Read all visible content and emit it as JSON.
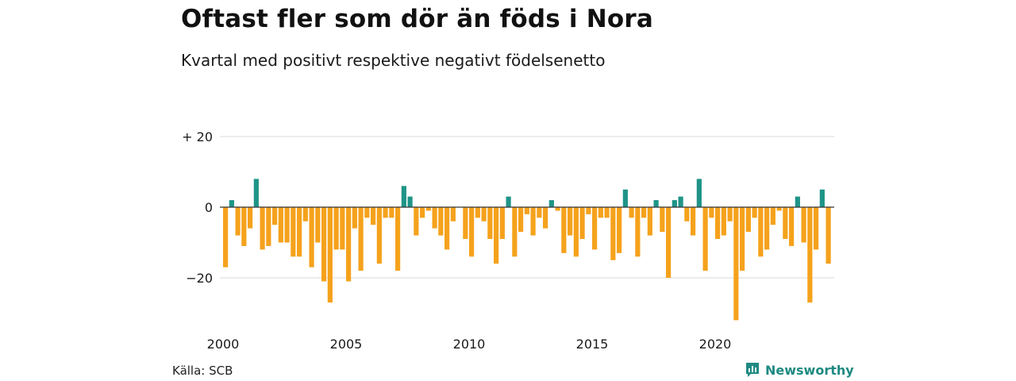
{
  "title": "Oftast fler som dör än föds i Nora",
  "subtitle": "Kvartal med positivt respektive negativt födelsenetto",
  "source": "Källa: SCB",
  "brand": "Newsworthy",
  "colors": {
    "positive": "#1f9488",
    "negative": "#f5a21c",
    "grid": "#d9d9d9",
    "zero": "#333333",
    "brand": "#1f8a82"
  },
  "chart_data": {
    "type": "bar",
    "title": "Oftast fler som dör än föds i Nora",
    "subtitle": "Kvartal med positivt respektive negativt födelsenetto",
    "xlabel": "",
    "ylabel": "",
    "ylim": [
      -35,
      25
    ],
    "grid": true,
    "y_ticks": [
      {
        "value": 20,
        "label": "+ 20"
      },
      {
        "value": 0,
        "label": "0"
      },
      {
        "value": -20,
        "label": "−20"
      }
    ],
    "x_ticks": [
      {
        "value": 2000,
        "label": "2000"
      },
      {
        "value": 2005,
        "label": "2005"
      },
      {
        "value": 2010,
        "label": "2010"
      },
      {
        "value": 2015,
        "label": "2015"
      },
      {
        "value": 2020,
        "label": "2020"
      }
    ],
    "x_start_year": 2000,
    "values": [
      -17,
      2,
      -8,
      -11,
      -6,
      8,
      -12,
      -11,
      -5,
      -10,
      -10,
      -14,
      -14,
      -4,
      -17,
      -10,
      -21,
      -27,
      -12,
      -12,
      -21,
      -6,
      -18,
      -3,
      -5,
      -16,
      -3,
      -3,
      -18,
      6,
      3,
      -8,
      -3,
      -1,
      -6,
      -8,
      -12,
      -4,
      0,
      -9,
      -14,
      -3,
      -4,
      -9,
      -16,
      -9,
      3,
      -14,
      -7,
      -2,
      -8,
      -3,
      -6,
      2,
      -1,
      -13,
      -8,
      -14,
      -9,
      -2,
      -12,
      -3,
      -3,
      -15,
      -13,
      5,
      -3,
      -14,
      -3,
      -8,
      2,
      -7,
      -20,
      2,
      3,
      -4,
      -8,
      8,
      -18,
      -3,
      -9,
      -8,
      -4,
      -32,
      -18,
      -7,
      -3,
      -14,
      -12,
      -5,
      -1,
      -9,
      -11,
      3,
      -10,
      -27,
      -12,
      5,
      -16
    ]
  }
}
